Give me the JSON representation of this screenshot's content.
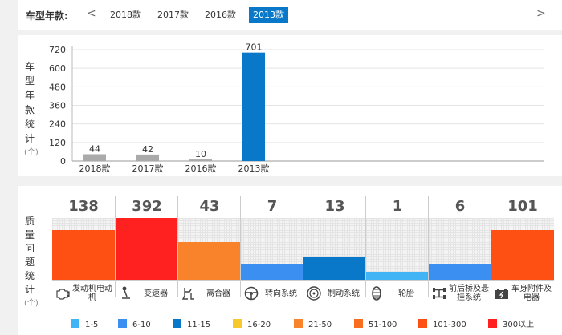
{
  "year_selector": {
    "label": "车型年款:",
    "prev": "<",
    "next": ">",
    "tabs": [
      "2018款",
      "2017款",
      "2016款",
      "2013款"
    ],
    "active": "2013款",
    "active_color": "#0a78c8"
  },
  "count_panel": {
    "vertical_label": [
      "车",
      "型",
      "年",
      "款",
      "统",
      "计"
    ],
    "unit": "(个)"
  },
  "quality_panel": {
    "vertical_label": [
      "质",
      "量",
      "问",
      "题",
      "统",
      "计"
    ],
    "unit": "(个)",
    "categories": [
      {
        "count": "138",
        "label": "发动机电动机",
        "icon": "engine-icon",
        "level": 0.81,
        "color": "#ff5014"
      },
      {
        "count": "392",
        "label": "变速器",
        "icon": "gear-shift-icon",
        "level": 1.0,
        "color": "#ff2020"
      },
      {
        "count": "43",
        "label": "离合器",
        "icon": "clutch-pedal-icon",
        "level": 0.61,
        "color": "#f8832a"
      },
      {
        "count": "7",
        "label": "转向系统",
        "icon": "steering-wheel-icon",
        "level": 0.25,
        "color": "#3a8ff0"
      },
      {
        "count": "13",
        "label": "制动系统",
        "icon": "brake-disc-icon",
        "level": 0.37,
        "color": "#0a78c8"
      },
      {
        "count": "1",
        "label": "轮胎",
        "icon": "tire-icon",
        "level": 0.12,
        "color": "#41b4f5"
      },
      {
        "count": "6",
        "label": "前后桥及悬挂系统",
        "icon": "axle-suspension-icon",
        "level": 0.25,
        "color": "#3a8ff0"
      },
      {
        "count": "101",
        "label": "车身附件及电器",
        "icon": "battery-icon",
        "level": 0.81,
        "color": "#ff5014"
      }
    ]
  },
  "legend": [
    {
      "label": "1-5",
      "color": "#41b4f5"
    },
    {
      "label": "6-10",
      "color": "#3a8ff0"
    },
    {
      "label": "11-15",
      "color": "#0a78c8"
    },
    {
      "label": "16-20",
      "color": "#f6c82a"
    },
    {
      "label": "21-50",
      "color": "#f8832a"
    },
    {
      "label": "51-100",
      "color": "#f86e1e"
    },
    {
      "label": "101-300",
      "color": "#ff5014"
    },
    {
      "label": "300以上",
      "color": "#ff2020"
    }
  ],
  "chart_data": {
    "type": "bar",
    "categories": [
      "2018款",
      "2017款",
      "2016款",
      "2013款"
    ],
    "values": [
      44,
      42,
      10,
      701
    ],
    "highlight_index": 3,
    "highlight_color": "#0a78c8",
    "bar_color": "#aaaaaa",
    "y_ticks": [
      0,
      120,
      240,
      360,
      480,
      600,
      720
    ],
    "ylim": [
      0,
      720
    ],
    "grid": true,
    "title": "",
    "xlabel": "",
    "ylabel": "车型年款统计(个)"
  }
}
